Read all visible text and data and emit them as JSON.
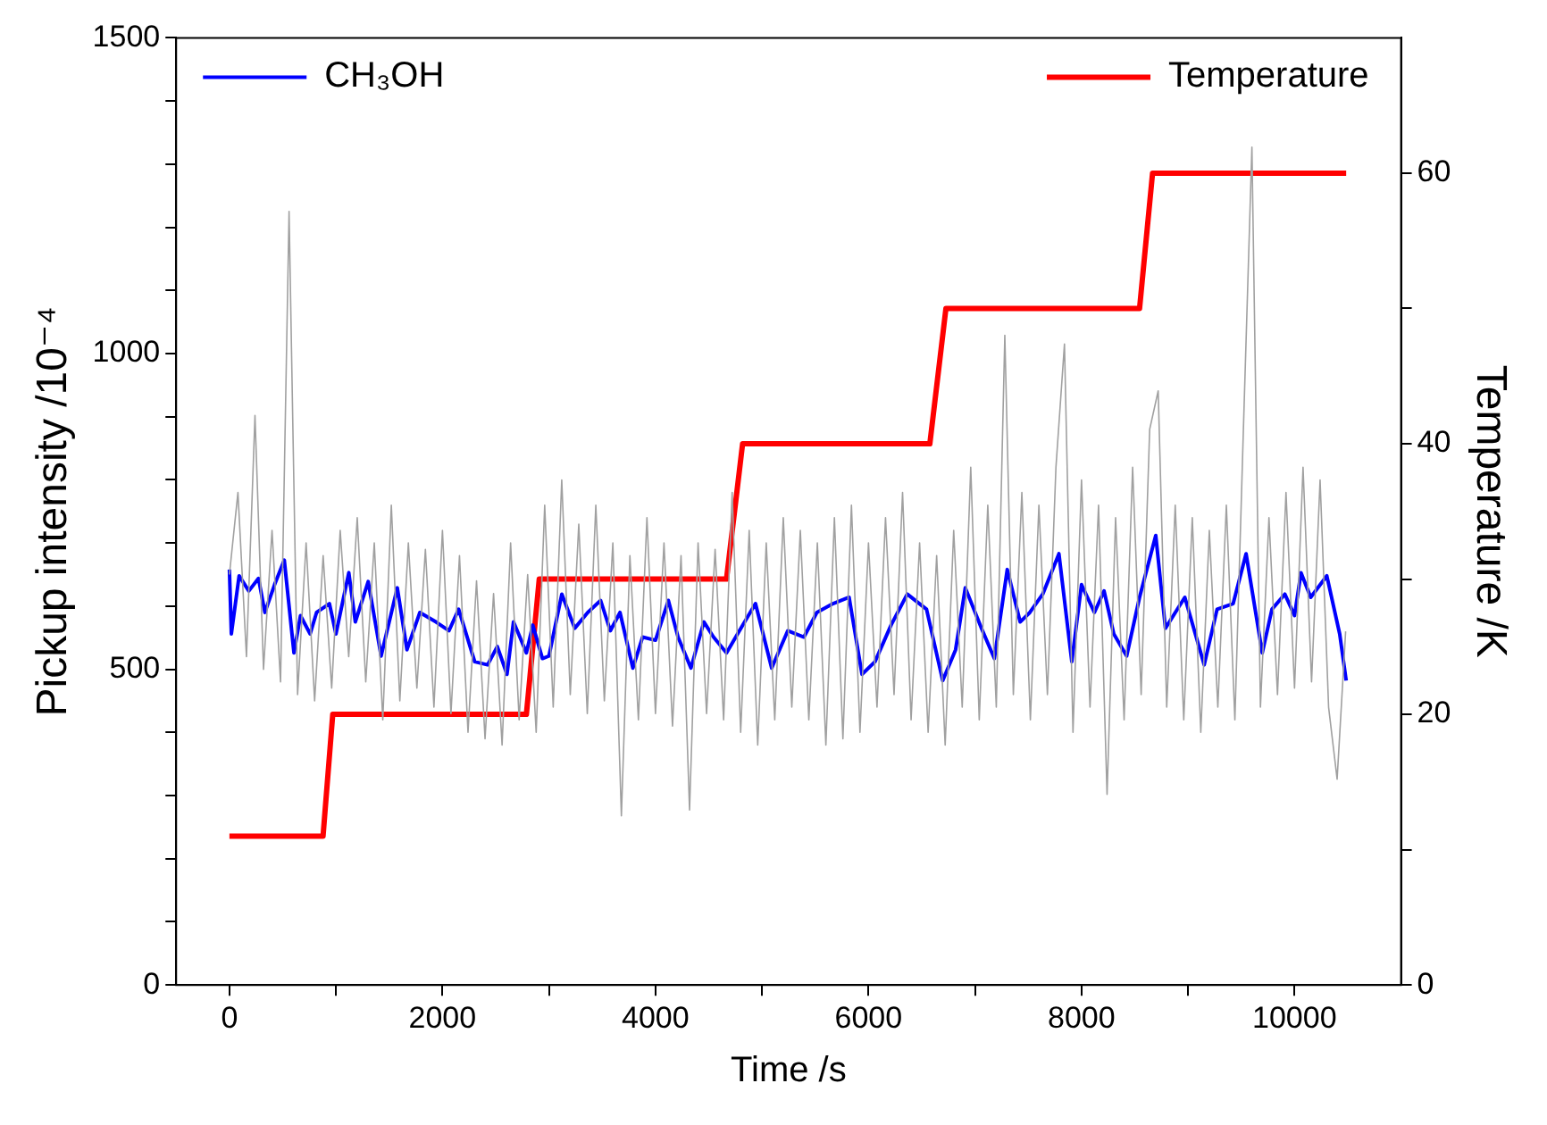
{
  "chart_data": {
    "type": "line",
    "xlabel": "Time /s",
    "ylabel": "Pickup intensity /10⁻⁴",
    "y2label": "Temperature /K",
    "xlim": [
      -500,
      11000
    ],
    "xticks": [
      0,
      {
        "value": 1000,
        "label": null
      },
      2000,
      {
        "value": 3000,
        "label": null
      },
      4000,
      {
        "value": 5000,
        "label": null
      },
      6000,
      {
        "value": 7000,
        "label": null
      },
      8000,
      {
        "value": 9000,
        "label": null
      },
      10000
    ],
    "ylim": [
      0,
      1500
    ],
    "yticks": [
      0,
      {
        "value": 100,
        "label": null
      },
      {
        "value": 200,
        "label": null
      },
      {
        "value": 300,
        "label": null
      },
      {
        "value": 400,
        "label": null
      },
      500,
      {
        "value": 600,
        "label": null
      },
      {
        "value": 700,
        "label": null
      },
      {
        "value": 800,
        "label": null
      },
      {
        "value": 900,
        "label": null
      },
      1000,
      {
        "value": 1100,
        "label": null
      },
      {
        "value": 1200,
        "label": null
      },
      {
        "value": 1300,
        "label": null
      },
      {
        "value": 1400,
        "label": null
      },
      1500
    ],
    "y2lim": [
      0,
      70
    ],
    "y2ticks": [
      0,
      {
        "value": 10,
        "label": null
      },
      20,
      {
        "value": 30,
        "label": null
      },
      40,
      {
        "value": 50,
        "label": null
      },
      60
    ],
    "grid": false,
    "legend": "top",
    "marker": "none",
    "line_style": "solid",
    "series": [
      {
        "color": "#a0a0a0",
        "x": [
          0,
          80,
          160,
          240,
          320,
          400,
          480,
          560,
          640,
          720,
          800,
          880,
          960,
          1040,
          1120,
          1200,
          1280,
          1360,
          1440,
          1520,
          1600,
          1680,
          1760,
          1840,
          1920,
          2000,
          2080,
          2160,
          2240,
          2320,
          2400,
          2480,
          2560,
          2640,
          2720,
          2800,
          2880,
          2960,
          3040,
          3120,
          3200,
          3280,
          3360,
          3440,
          3520,
          3600,
          3680,
          3760,
          3840,
          3920,
          4000,
          4080,
          4160,
          4240,
          4320,
          4400,
          4480,
          4560,
          4640,
          4720,
          4800,
          4880,
          4960,
          5040,
          5120,
          5200,
          5280,
          5360,
          5440,
          5520,
          5600,
          5680,
          5760,
          5840,
          5920,
          6000,
          6080,
          6160,
          6240,
          6320,
          6400,
          6480,
          6560,
          6640,
          6720,
          6800,
          6880,
          6960,
          7040,
          7120,
          7200,
          7280,
          7360,
          7440,
          7520,
          7600,
          7680,
          7760,
          7840,
          7920,
          8000,
          8080,
          8160,
          8240,
          8320,
          8400,
          8480,
          8560,
          8640,
          8720,
          8800,
          8880,
          8960,
          9040,
          9120,
          9200,
          9280,
          9360,
          9440,
          9520,
          9600,
          9680,
          9760,
          9840,
          9920,
          10000,
          10080,
          10160,
          10240,
          10320,
          10400,
          10480
        ],
        "values": [
          650,
          780,
          520,
          902,
          500,
          720,
          480,
          1225,
          460,
          700,
          450,
          680,
          470,
          720,
          520,
          740,
          480,
          700,
          420,
          760,
          450,
          700,
          470,
          690,
          440,
          720,
          430,
          680,
          400,
          640,
          390,
          620,
          380,
          700,
          420,
          650,
          400,
          760,
          440,
          800,
          460,
          730,
          430,
          760,
          450,
          700,
          268,
          680,
          420,
          740,
          430,
          700,
          410,
          680,
          277,
          700,
          430,
          690,
          420,
          780,
          400,
          720,
          380,
          700,
          420,
          740,
          440,
          720,
          420,
          700,
          380,
          740,
          390,
          760,
          400,
          700,
          440,
          740,
          460,
          780,
          420,
          700,
          400,
          680,
          380,
          720,
          440,
          820,
          420,
          760,
          440,
          1029,
          460,
          780,
          420,
          760,
          460,
          820,
          1015,
          400,
          800,
          440,
          760,
          302,
          740,
          420,
          820,
          460,
          880,
          941,
          440,
          760,
          420,
          740,
          400,
          720,
          440,
          760,
          420,
          880,
          1327,
          440,
          740,
          460,
          780,
          470,
          820,
          480,
          800,
          440,
          326,
          560
        ]
      },
      {
        "name": "CH₃OH",
        "color": "#0000ff",
        "x": [
          0,
          18,
          91,
          182,
          273,
          333,
          424,
          515,
          606,
          667,
          758,
          818,
          939,
          1000,
          1121,
          1182,
          1303,
          1424,
          1576,
          1667,
          1788,
          1939,
          2061,
          2152,
          2303,
          2424,
          2515,
          2606,
          2667,
          2727,
          2788,
          2848,
          2939,
          3000,
          3121,
          3242,
          3364,
          3485,
          3576,
          3667,
          3788,
          3879,
          4000,
          4121,
          4212,
          4333,
          4455,
          4545,
          4667,
          4788,
          4939,
          5091,
          5242,
          5394,
          5515,
          5667,
          5818,
          5939,
          6061,
          6212,
          6364,
          6545,
          6697,
          6818,
          6909,
          7061,
          7182,
          7303,
          7424,
          7515,
          7636,
          7788,
          7909,
          8000,
          8121,
          8212,
          8303,
          8424,
          8545,
          8697,
          8788,
          8970,
          9152,
          9273,
          9424,
          9545,
          9697,
          9788,
          9909,
          10000,
          10061,
          10152,
          10303,
          10424,
          10485
        ],
        "values": [
          658,
          556,
          648,
          624,
          644,
          590,
          634,
          673,
          526,
          585,
          556,
          590,
          604,
          556,
          653,
          575,
          639,
          521,
          629,
          531,
          590,
          575,
          561,
          595,
          512,
          507,
          536,
          492,
          575,
          551,
          526,
          570,
          517,
          521,
          619,
          565,
          590,
          609,
          561,
          590,
          502,
          551,
          546,
          609,
          551,
          502,
          575,
          551,
          526,
          561,
          604,
          502,
          561,
          551,
          590,
          604,
          614,
          492,
          512,
          570,
          619,
          595,
          482,
          531,
          629,
          565,
          517,
          658,
          575,
          590,
          619,
          683,
          512,
          634,
          590,
          624,
          556,
          521,
          614,
          712,
          565,
          614,
          507,
          595,
          604,
          683,
          526,
          595,
          619,
          585,
          653,
          614,
          648,
          556,
          482
        ]
      },
      {
        "name": "Temperature",
        "color": "#ff0000",
        "axis": "y2",
        "x": [
          0,
          879,
          970,
          1757,
          2242,
          2788,
          2909,
          4667,
          4818,
          5394,
          6576,
          6727,
          7515,
          8545,
          8667,
          8848,
          10485
        ],
        "values": [
          11,
          11,
          20,
          20,
          20,
          20,
          30,
          30,
          40,
          40,
          40,
          50,
          50,
          50,
          60,
          60,
          60
        ]
      }
    ]
  }
}
